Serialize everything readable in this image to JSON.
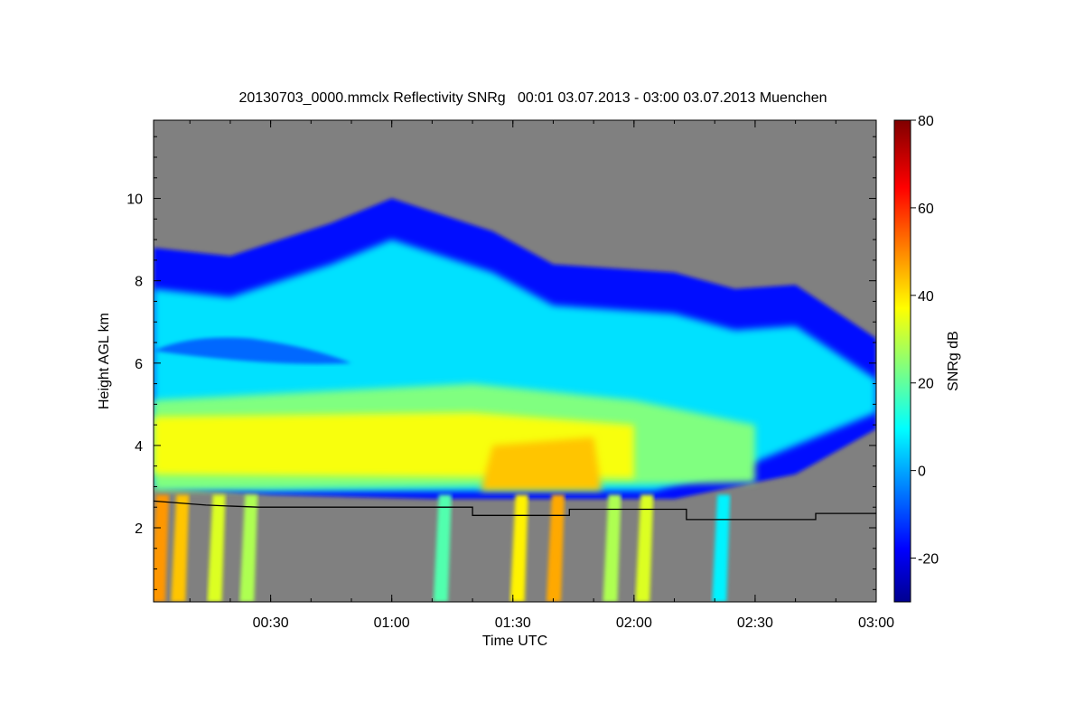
{
  "chart_data": {
    "type": "heatmap",
    "title": "20130703_0000.mmclx Reflectivity SNRg   00:01 03.07.2013 - 03:00 03.07.2013 Muenchen",
    "xlabel": "Time UTC",
    "ylabel": "Height AGL km",
    "xlim": [
      "00:01",
      "03:00"
    ],
    "ylim": [
      0.2,
      11.9
    ],
    "x_ticks": [
      "00:30",
      "01:00",
      "01:30",
      "02:00",
      "02:30",
      "03:00"
    ],
    "y_ticks": [
      "2",
      "4",
      "6",
      "8",
      "10"
    ],
    "colorbar": {
      "label": "SNRg dB",
      "range": [
        -30,
        80
      ],
      "ticks": [
        "-20",
        "0",
        "20",
        "40",
        "60",
        "80"
      ],
      "colormap": "jet"
    },
    "no_signal_color": "#808080",
    "cloud_features": {
      "cloud_top_km": [
        {
          "time": "00:01",
          "top": 8.8
        },
        {
          "time": "00:20",
          "top": 8.6
        },
        {
          "time": "00:45",
          "top": 9.4
        },
        {
          "time": "01:00",
          "top": 10.0
        },
        {
          "time": "01:25",
          "top": 9.2
        },
        {
          "time": "01:40",
          "top": 8.4
        },
        {
          "time": "02:10",
          "top": 8.2
        },
        {
          "time": "02:25",
          "top": 7.8
        },
        {
          "time": "02:40",
          "top": 7.9
        },
        {
          "time": "03:00",
          "top": 6.6
        }
      ],
      "dry_gap_km": {
        "from": "00:01",
        "to": "00:50",
        "base": 6.0,
        "top": 6.7
      },
      "core_layer_km": {
        "base": 2.9,
        "top": 5.1,
        "max_snr_db": 45
      },
      "fall_streaks": [
        {
          "time": "00:03",
          "snr_db": 50
        },
        {
          "time": "00:08",
          "snr_db": 45
        },
        {
          "time": "00:17",
          "snr_db": 35
        },
        {
          "time": "00:25",
          "snr_db": 30
        },
        {
          "time": "01:13",
          "snr_db": 20
        },
        {
          "time": "01:32",
          "snr_db": 40
        },
        {
          "time": "01:41",
          "snr_db": 48
        },
        {
          "time": "01:55",
          "snr_db": 30
        },
        {
          "time": "02:03",
          "snr_db": 35
        },
        {
          "time": "02:22",
          "snr_db": 10
        }
      ]
    },
    "boundary_line_km": [
      {
        "time": "00:01",
        "height": 2.65
      },
      {
        "time": "00:14",
        "height": 2.55
      },
      {
        "time": "00:27",
        "height": 2.5
      },
      {
        "time": "01:20",
        "height": 2.5
      },
      {
        "time": "01:20",
        "height": 2.3
      },
      {
        "time": "01:44",
        "height": 2.3
      },
      {
        "time": "01:44",
        "height": 2.45
      },
      {
        "time": "02:13",
        "height": 2.45
      },
      {
        "time": "02:13",
        "height": 2.2
      },
      {
        "time": "02:45",
        "height": 2.2
      },
      {
        "time": "02:45",
        "height": 2.35
      },
      {
        "time": "03:00",
        "height": 2.35
      }
    ]
  }
}
